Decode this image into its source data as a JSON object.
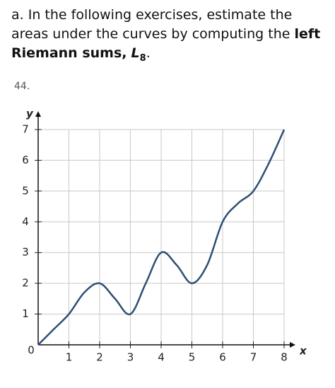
{
  "header": {
    "parts": [
      "a. In the following exercises, estimate the areas under the curves by computing the",
      "left Riemann sums,",
      "L",
      "8",
      "."
    ]
  },
  "exercise": "44.",
  "chart_data": {
    "type": "line",
    "x": [
      0,
      0.5,
      1,
      1.5,
      2,
      2.5,
      3,
      3.5,
      4,
      4.5,
      5,
      5.5,
      6,
      6.5,
      7,
      7.5,
      8
    ],
    "values": [
      0,
      0.5,
      1,
      1.7,
      2,
      1.5,
      1,
      2,
      3,
      2.6,
      2,
      2.6,
      4,
      4.6,
      5,
      5.9,
      7
    ],
    "color": "#2e4f74",
    "xlim": [
      0,
      8
    ],
    "ylim": [
      0,
      7
    ],
    "xticks": [
      0,
      1,
      2,
      3,
      4,
      5,
      6,
      7,
      8
    ],
    "yticks": [
      1,
      2,
      3,
      4,
      5,
      6,
      7
    ],
    "x_label": "x",
    "y_label": "y",
    "grid": true
  }
}
